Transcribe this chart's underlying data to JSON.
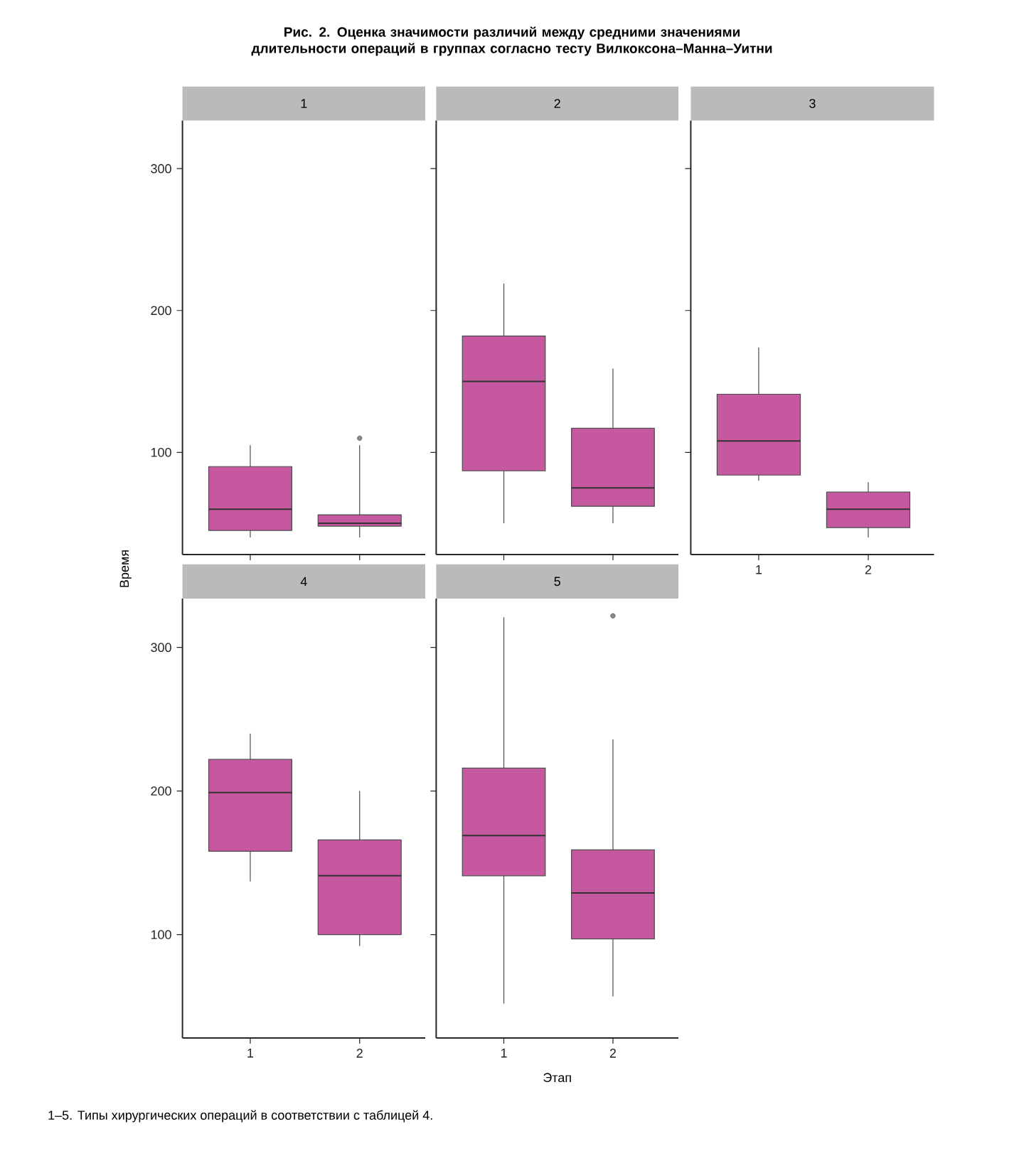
{
  "chart_data": [
    {
      "type": "box",
      "title": "1",
      "categories": [
        "1",
        "2"
      ],
      "ylim": [
        28,
        334
      ],
      "yticks": [
        100,
        200,
        300
      ],
      "tick_labels": "y",
      "annotations": [
        "Рис. 2. Оценка значимости различий между средними значениями длительности операций в группах согласно тесту Вилкоксона–Манна–Уитни"
      ],
      "series": [
        {
          "color": "#c5589f",
          "boxes": [
            {
              "low": 40,
              "q1": 45,
              "median": 60,
              "q3": 90,
              "high": 105
            },
            {
              "low": 40,
              "q1": 48,
              "median": 50,
              "q3": 56,
              "high": 105,
              "outliers": [
                110
              ]
            }
          ]
        }
      ]
    },
    {
      "type": "box",
      "title": "2",
      "categories": [
        "1",
        "2"
      ],
      "ylim": [
        28,
        334
      ],
      "yticks": [
        100,
        200,
        300
      ],
      "tick_labels": false,
      "series": [
        {
          "color": "#c5589f",
          "boxes": [
            {
              "low": 50,
              "q1": 87,
              "median": 150,
              "q3": 182,
              "high": 219
            },
            {
              "low": 50,
              "q1": 62,
              "median": 75,
              "q3": 117,
              "high": 159
            }
          ]
        }
      ]
    },
    {
      "type": "box",
      "title": "3",
      "categories": [
        "1",
        "2"
      ],
      "ylim": [
        28,
        334
      ],
      "yticks": [
        100,
        200,
        300
      ],
      "tick_labels": "x",
      "series": [
        {
          "color": "#c5589f",
          "boxes": [
            {
              "low": 80,
              "q1": 84,
              "median": 108,
              "q3": 141,
              "high": 174
            },
            {
              "low": 40,
              "q1": 47,
              "median": 60,
              "q3": 72,
              "high": 79
            }
          ]
        }
      ]
    },
    {
      "type": "box",
      "title": "4",
      "categories": [
        "1",
        "2"
      ],
      "ylim": [
        28,
        334
      ],
      "yticks": [
        100,
        200,
        300
      ],
      "ylabel": "Время",
      "series": [
        {
          "color": "#c5589f",
          "boxes": [
            {
              "low": 137,
              "q1": 158,
              "median": 199,
              "q3": 222,
              "high": 240
            },
            {
              "low": 92,
              "q1": 100,
              "median": 141,
              "q3": 166,
              "high": 200
            }
          ]
        }
      ]
    },
    {
      "type": "box",
      "title": "5",
      "categories": [
        "1",
        "2"
      ],
      "ylim": [
        28,
        334
      ],
      "yticks": [
        100,
        200,
        300
      ],
      "tick_labels": "x",
      "xlabel": "Этап",
      "annotations": [
        "1–5. Типы хирургических операций в соответствии с таблицей 4."
      ],
      "series": [
        {
          "color": "#c5589f",
          "boxes": [
            {
              "low": 52,
              "q1": 141,
              "median": 169,
              "q3": 216,
              "high": 321
            },
            {
              "low": 57,
              "q1": 97,
              "median": 129,
              "q3": 159,
              "high": 236,
              "outliers": [
                322
              ]
            }
          ]
        }
      ]
    }
  ]
}
